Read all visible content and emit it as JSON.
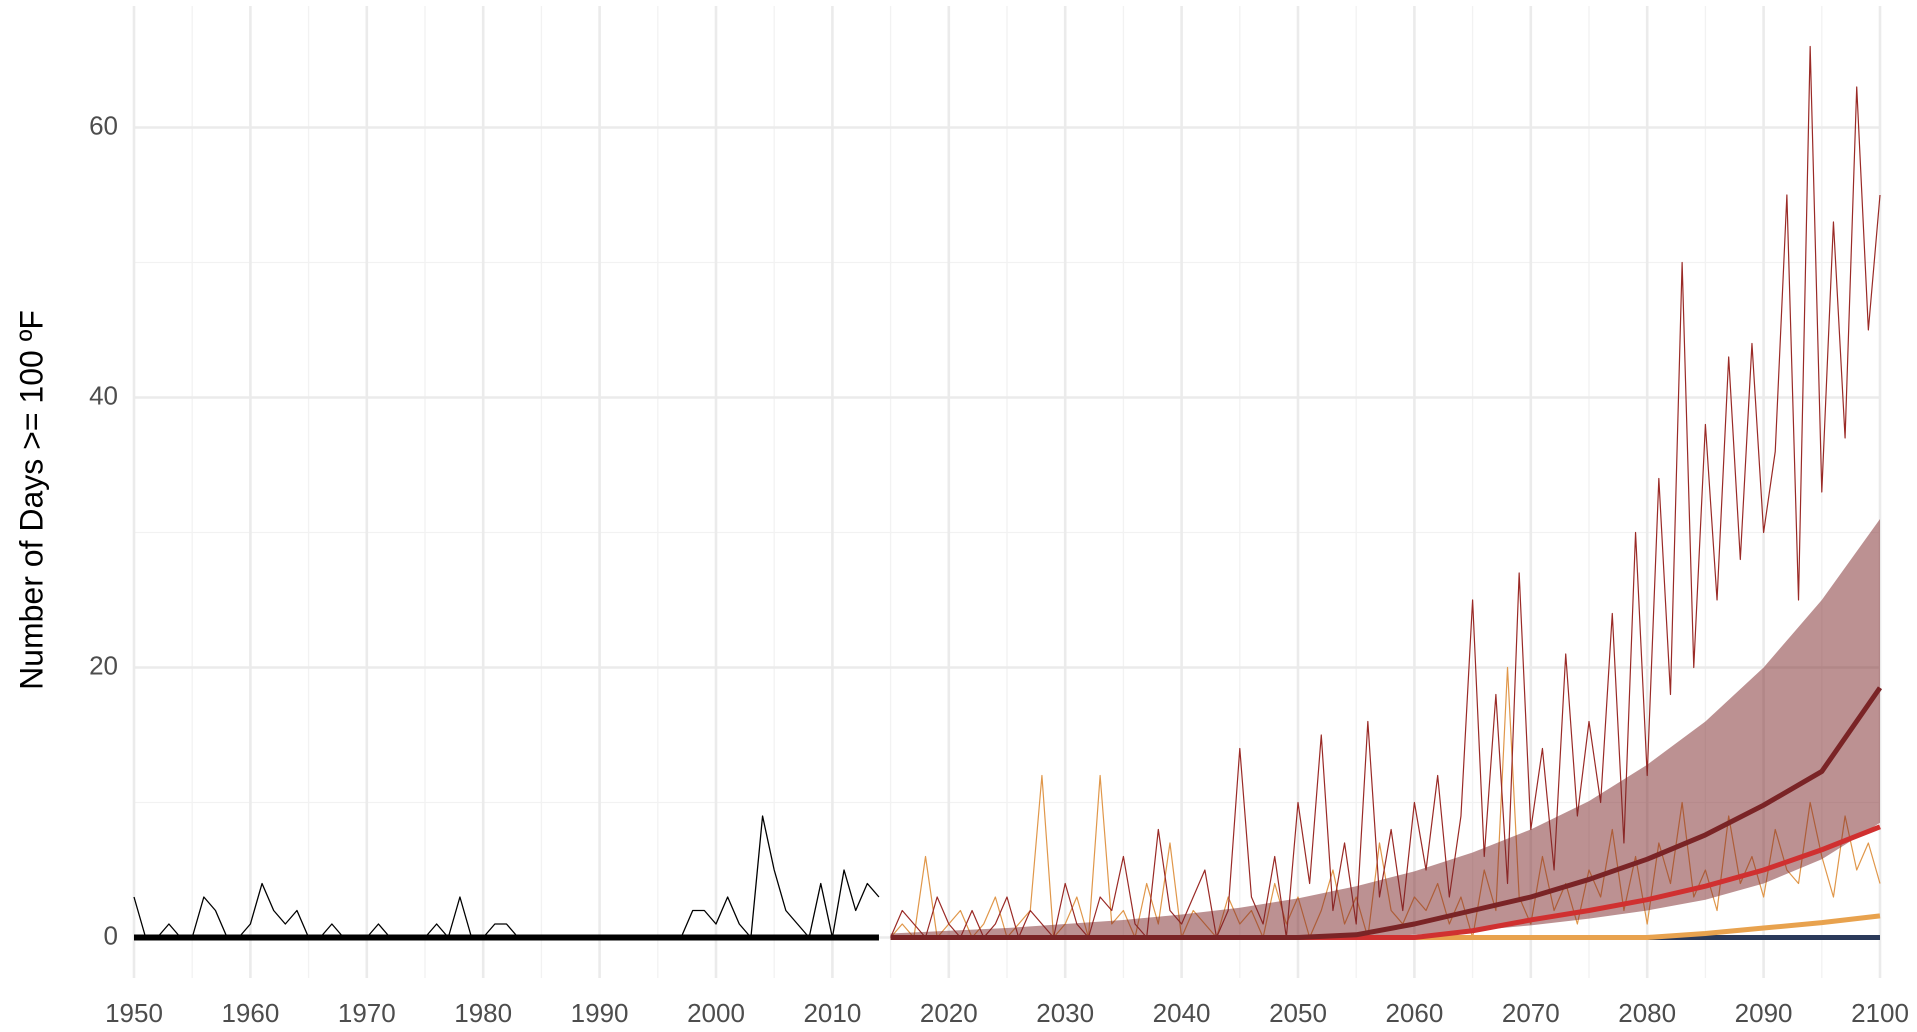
{
  "chart_data": {
    "type": "line",
    "ylabel": "Number of Days >= 100 ºF",
    "xlim": [
      1950,
      2100
    ],
    "ylim": [
      -3,
      69
    ],
    "xticks": [
      1950,
      1960,
      1970,
      1980,
      1990,
      2000,
      2010,
      2020,
      2030,
      2040,
      2050,
      2060,
      2070,
      2080,
      2090,
      2100
    ],
    "yticks": [
      0,
      20,
      40,
      60
    ],
    "xminor": [
      1955,
      1965,
      1975,
      1985,
      1995,
      2005,
      2015,
      2025,
      2035,
      2045,
      2055,
      2065,
      2075,
      2085,
      2095
    ],
    "yminor": [
      10,
      30,
      50
    ],
    "grid": true,
    "series": [
      {
        "color": "#000000",
        "width": 1.3,
        "x": [
          1950,
          1951,
          1952,
          1953,
          1954,
          1955,
          1956,
          1957,
          1958,
          1959,
          1960,
          1961,
          1962,
          1963,
          1964,
          1965,
          1966,
          1967,
          1968,
          1969,
          1970,
          1971,
          1972,
          1973,
          1974,
          1975,
          1976,
          1977,
          1978,
          1979,
          1980,
          1981,
          1982,
          1983,
          1984,
          1985,
          1986,
          1987,
          1988,
          1989,
          1990,
          1991,
          1992,
          1993,
          1994,
          1995,
          1996,
          1997,
          1998,
          1999,
          2000,
          2001,
          2002,
          2003,
          2004,
          2005,
          2006,
          2007,
          2008,
          2009,
          2010,
          2011,
          2012,
          2013,
          2014
        ],
        "values": [
          3,
          0,
          0,
          1,
          0,
          0,
          3,
          2,
          0,
          0,
          1,
          4,
          2,
          1,
          2,
          0,
          0,
          1,
          0,
          0,
          0,
          1,
          0,
          0,
          0,
          0,
          1,
          0,
          3,
          0,
          0,
          1,
          1,
          0,
          0,
          0,
          0,
          0,
          0,
          0,
          0,
          0,
          0,
          0,
          0,
          0,
          0,
          0,
          2,
          2,
          1,
          3,
          1,
          0,
          9,
          5,
          2,
          1,
          0,
          4,
          0,
          5,
          2,
          4,
          3
        ]
      },
      {
        "color": "#e0974a",
        "width": 1.2,
        "x": [
          2015,
          2016,
          2017,
          2018,
          2019,
          2020,
          2021,
          2022,
          2023,
          2024,
          2025,
          2026,
          2027,
          2028,
          2029,
          2030,
          2031,
          2032,
          2033,
          2034,
          2035,
          2036,
          2037,
          2038,
          2039,
          2040,
          2041,
          2042,
          2043,
          2044,
          2045,
          2046,
          2047,
          2048,
          2049,
          2050,
          2051,
          2052,
          2053,
          2054,
          2055,
          2056,
          2057,
          2058,
          2059,
          2060,
          2061,
          2062,
          2063,
          2064,
          2065,
          2066,
          2067,
          2068,
          2069,
          2070,
          2071,
          2072,
          2073,
          2074,
          2075,
          2076,
          2077,
          2078,
          2079,
          2080,
          2081,
          2082,
          2083,
          2084,
          2085,
          2086,
          2087,
          2088,
          2089,
          2090,
          2091,
          2092,
          2093,
          2094,
          2095,
          2096,
          2097,
          2098,
          2099,
          2100
        ],
        "values": [
          0,
          1,
          0,
          6,
          0,
          1,
          2,
          0,
          1,
          3,
          0,
          1,
          2,
          12,
          0,
          1,
          3,
          0,
          12,
          1,
          2,
          0,
          4,
          1,
          7,
          0,
          2,
          1,
          0,
          3,
          1,
          2,
          0,
          4,
          1,
          3,
          0,
          2,
          5,
          1,
          3,
          0,
          7,
          2,
          1,
          3,
          2,
          4,
          1,
          3,
          0,
          5,
          2,
          20,
          3,
          1,
          6,
          2,
          4,
          1,
          5,
          3,
          8,
          2,
          6,
          1,
          7,
          4,
          10,
          3,
          5,
          2,
          9,
          4,
          6,
          3,
          8,
          5,
          4,
          10,
          6,
          3,
          9,
          5,
          7,
          4
        ]
      },
      {
        "color": "#9a2a26",
        "width": 1.2,
        "x": [
          2015,
          2016,
          2017,
          2018,
          2019,
          2020,
          2021,
          2022,
          2023,
          2024,
          2025,
          2026,
          2027,
          2028,
          2029,
          2030,
          2031,
          2032,
          2033,
          2034,
          2035,
          2036,
          2037,
          2038,
          2039,
          2040,
          2041,
          2042,
          2043,
          2044,
          2045,
          2046,
          2047,
          2048,
          2049,
          2050,
          2051,
          2052,
          2053,
          2054,
          2055,
          2056,
          2057,
          2058,
          2059,
          2060,
          2061,
          2062,
          2063,
          2064,
          2065,
          2066,
          2067,
          2068,
          2069,
          2070,
          2071,
          2072,
          2073,
          2074,
          2075,
          2076,
          2077,
          2078,
          2079,
          2080,
          2081,
          2082,
          2083,
          2084,
          2085,
          2086,
          2087,
          2088,
          2089,
          2090,
          2091,
          2092,
          2093,
          2094,
          2095,
          2096,
          2097,
          2098,
          2099,
          2100
        ],
        "values": [
          0,
          2,
          1,
          0,
          3,
          1,
          0,
          2,
          0,
          1,
          3,
          0,
          2,
          1,
          0,
          4,
          1,
          0,
          3,
          2,
          6,
          1,
          0,
          8,
          2,
          1,
          3,
          5,
          0,
          2,
          14,
          3,
          1,
          6,
          0,
          10,
          4,
          15,
          2,
          7,
          1,
          16,
          3,
          8,
          2,
          10,
          5,
          12,
          3,
          9,
          25,
          6,
          18,
          4,
          27,
          8,
          14,
          5,
          21,
          9,
          16,
          10,
          24,
          7,
          30,
          12,
          34,
          18,
          50,
          20,
          38,
          25,
          43,
          28,
          44,
          30,
          36,
          55,
          25,
          66,
          33,
          53,
          37,
          63,
          45,
          55
        ]
      },
      {
        "color": "#000000",
        "width": 6,
        "x": [
          1950,
          2014
        ],
        "values": [
          0,
          0
        ]
      },
      {
        "color": "#2b3a5a",
        "width": 5,
        "x": [
          2015,
          2020,
          2025,
          2030,
          2035,
          2040,
          2045,
          2050,
          2055,
          2060,
          2065,
          2070,
          2075,
          2080,
          2085,
          2090,
          2095,
          2100
        ],
        "values": [
          0,
          0,
          0,
          0,
          0,
          0,
          0,
          0,
          0,
          0,
          0,
          0,
          0,
          0,
          0,
          0,
          0,
          0
        ]
      },
      {
        "color": "#e8a24e",
        "width": 5,
        "x": [
          2015,
          2020,
          2025,
          2030,
          2035,
          2040,
          2045,
          2050,
          2055,
          2060,
          2065,
          2070,
          2075,
          2080,
          2085,
          2090,
          2095,
          2100
        ],
        "values": [
          0,
          0,
          0,
          0,
          0,
          0,
          0,
          0,
          0,
          0,
          0,
          0,
          0,
          0,
          0.3,
          0.7,
          1.1,
          1.6
        ]
      },
      {
        "color": "#d03030",
        "width": 5,
        "x": [
          2015,
          2020,
          2025,
          2030,
          2035,
          2040,
          2045,
          2050,
          2055,
          2060,
          2065,
          2070,
          2075,
          2080,
          2085,
          2090,
          2095,
          2100
        ],
        "values": [
          0,
          0,
          0,
          0,
          0,
          0,
          0,
          0,
          0,
          0,
          0.5,
          1.3,
          2.0,
          2.8,
          3.8,
          5.0,
          6.5,
          8.2
        ]
      },
      {
        "color": "#7a2426",
        "width": 5,
        "x": [
          2015,
          2020,
          2025,
          2030,
          2035,
          2040,
          2045,
          2050,
          2055,
          2060,
          2065,
          2070,
          2075,
          2080,
          2085,
          2090,
          2095,
          2100
        ],
        "values": [
          0,
          0,
          0,
          0,
          0,
          0,
          0,
          0,
          0.2,
          1.0,
          2.0,
          3.0,
          4.3,
          5.8,
          7.6,
          9.8,
          12.3,
          18.5
        ]
      }
    ],
    "bands": [
      {
        "color": "#7a2426",
        "x": [
          2015,
          2020,
          2025,
          2030,
          2035,
          2040,
          2045,
          2050,
          2055,
          2060,
          2065,
          2070,
          2075,
          2080,
          2085,
          2090,
          2095,
          2100
        ],
        "lower": [
          0,
          0,
          0,
          0,
          0,
          0,
          0,
          0,
          0,
          0.2,
          0.5,
          0.9,
          1.4,
          2.0,
          2.8,
          4.0,
          5.8,
          8.5
        ],
        "upper": [
          0.3,
          0.5,
          0.7,
          1,
          1.3,
          1.7,
          2.2,
          2.9,
          3.8,
          4.9,
          6.3,
          8.0,
          10.1,
          12.8,
          16.0,
          20.0,
          25,
          31
        ]
      }
    ]
  }
}
